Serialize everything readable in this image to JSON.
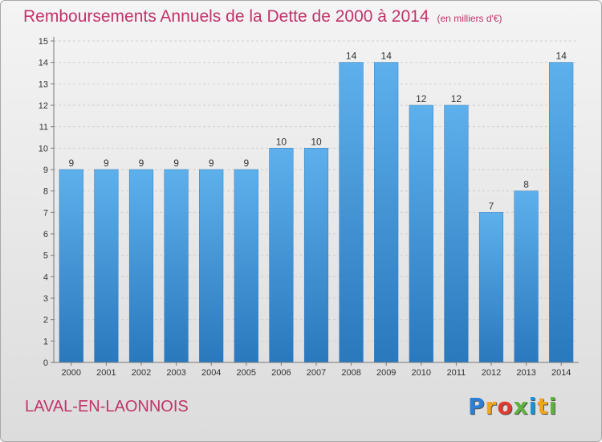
{
  "title": "Remboursements Annuels de la Dette de 2000 à 2014",
  "subtitle": "(en milliers d'€)",
  "place": "LAVAL-EN-LAONNOIS",
  "logo": {
    "letters": [
      "P",
      "r",
      "o",
      "x",
      "i",
      "t",
      "i"
    ],
    "colors": [
      "#2b7fd4",
      "#f2a51a",
      "#e23a2e",
      "#5db33d",
      "#1a94d4",
      "#f2a51a",
      "#5db33d"
    ]
  },
  "chart_data": {
    "type": "bar",
    "categories": [
      "2000",
      "2001",
      "2002",
      "2003",
      "2004",
      "2005",
      "2006",
      "2007",
      "2008",
      "2009",
      "2010",
      "2011",
      "2012",
      "2013",
      "2014"
    ],
    "values": [
      9,
      9,
      9,
      9,
      9,
      9,
      10,
      10,
      14,
      14,
      12,
      12,
      7,
      8,
      14
    ],
    "y_ticks": [
      "0",
      "1",
      "2",
      "3",
      "4",
      "5",
      "6",
      "7",
      "8",
      "9",
      "10",
      "11",
      "12",
      "13",
      "14",
      "15"
    ],
    "ylim": [
      0,
      15
    ],
    "grid": true,
    "bar_color": "#4a9ee0"
  }
}
